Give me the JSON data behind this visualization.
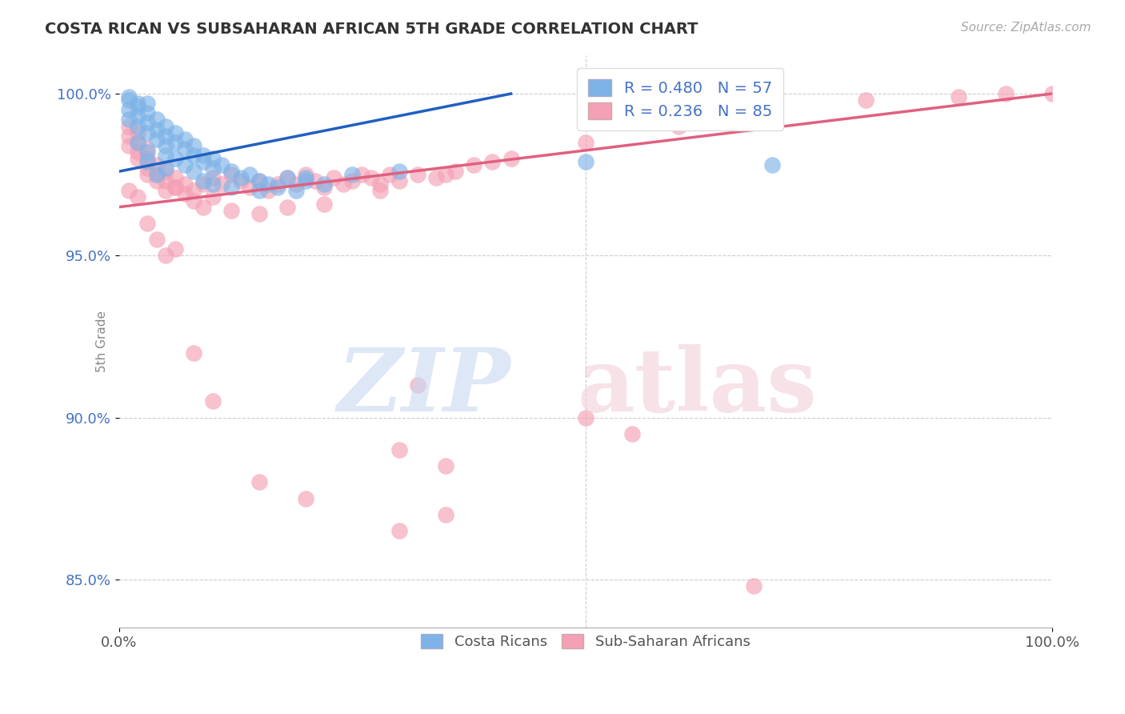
{
  "title": "COSTA RICAN VS SUBSAHARAN AFRICAN 5TH GRADE CORRELATION CHART",
  "source": "Source: ZipAtlas.com",
  "ylabel": "5th Grade",
  "xlim": [
    0,
    100
  ],
  "ylim": [
    83.5,
    101.2
  ],
  "ytick_labels": [
    "85.0%",
    "90.0%",
    "95.0%",
    "100.0%"
  ],
  "ytick_values": [
    85,
    90,
    95,
    100
  ],
  "xtick_labels": [
    "0.0%",
    "100.0%"
  ],
  "xtick_values": [
    0,
    100
  ],
  "blue_R": 0.48,
  "blue_N": 57,
  "pink_R": 0.236,
  "pink_N": 85,
  "blue_color": "#7EB3E8",
  "pink_color": "#F4A0B5",
  "blue_line_color": "#2060C0",
  "pink_line_color": "#E06080",
  "background_color": "#FFFFFF",
  "blue_line_x0": 0,
  "blue_line_y0": 97.6,
  "blue_line_x1": 42,
  "blue_line_y1": 100.0,
  "pink_line_x0": 0,
  "pink_line_y0": 96.5,
  "pink_line_x1": 100,
  "pink_line_y1": 100.0,
  "blue_dots_x": [
    1,
    1,
    2,
    2,
    2,
    3,
    3,
    3,
    3,
    4,
    4,
    4,
    5,
    5,
    5,
    5,
    6,
    6,
    7,
    7,
    8,
    8,
    9,
    9,
    10,
    10,
    11,
    12,
    13,
    14,
    15,
    16,
    17,
    18,
    19,
    20,
    22,
    25,
    1,
    1,
    2,
    2,
    3,
    3,
    4,
    5,
    6,
    7,
    8,
    9,
    10,
    12,
    15,
    20,
    30,
    50,
    70
  ],
  "blue_dots_y": [
    99.8,
    99.5,
    99.6,
    99.3,
    99.0,
    99.4,
    99.1,
    98.8,
    99.7,
    99.2,
    98.9,
    98.6,
    99.0,
    98.7,
    98.4,
    98.1,
    98.8,
    98.5,
    98.6,
    98.3,
    98.4,
    98.1,
    98.1,
    97.9,
    98.0,
    97.7,
    97.8,
    97.6,
    97.4,
    97.5,
    97.3,
    97.2,
    97.1,
    97.4,
    97.0,
    97.3,
    97.2,
    97.5,
    99.9,
    99.2,
    99.7,
    98.5,
    98.2,
    97.9,
    97.5,
    97.7,
    98.0,
    97.8,
    97.6,
    97.3,
    97.2,
    97.1,
    97.0,
    97.4,
    97.6,
    97.9,
    97.8
  ],
  "pink_dots_x": [
    1,
    1,
    1,
    2,
    2,
    2,
    3,
    3,
    3,
    4,
    4,
    5,
    5,
    6,
    6,
    7,
    8,
    9,
    10,
    11,
    12,
    13,
    14,
    15,
    16,
    17,
    18,
    19,
    20,
    21,
    22,
    23,
    24,
    25,
    26,
    27,
    28,
    29,
    30,
    32,
    34,
    36,
    38,
    40,
    2,
    3,
    4,
    5,
    6,
    7,
    8,
    9,
    10,
    12,
    15,
    18,
    22,
    28,
    35,
    42,
    50,
    60,
    70,
    80,
    90,
    95,
    100,
    1,
    2,
    3,
    4,
    5,
    6,
    8,
    10,
    15,
    20,
    30,
    35,
    30,
    32,
    35,
    50,
    55,
    68
  ],
  "pink_dots_y": [
    99.0,
    98.7,
    98.4,
    98.8,
    98.5,
    98.2,
    98.3,
    98.0,
    97.7,
    97.8,
    97.5,
    97.6,
    97.3,
    97.4,
    97.1,
    97.2,
    97.0,
    97.2,
    97.4,
    97.2,
    97.5,
    97.3,
    97.1,
    97.3,
    97.0,
    97.2,
    97.4,
    97.2,
    97.5,
    97.3,
    97.1,
    97.4,
    97.2,
    97.3,
    97.5,
    97.4,
    97.2,
    97.5,
    97.3,
    97.5,
    97.4,
    97.6,
    97.8,
    97.9,
    98.0,
    97.5,
    97.3,
    97.0,
    97.1,
    96.9,
    96.7,
    96.5,
    96.8,
    96.4,
    96.3,
    96.5,
    96.6,
    97.0,
    97.5,
    98.0,
    98.5,
    99.0,
    99.5,
    99.8,
    99.9,
    100.0,
    100.0,
    97.0,
    96.8,
    96.0,
    95.5,
    95.0,
    95.2,
    92.0,
    90.5,
    88.0,
    87.5,
    86.5,
    87.0,
    89.0,
    91.0,
    88.5,
    90.0,
    89.5,
    84.8
  ]
}
